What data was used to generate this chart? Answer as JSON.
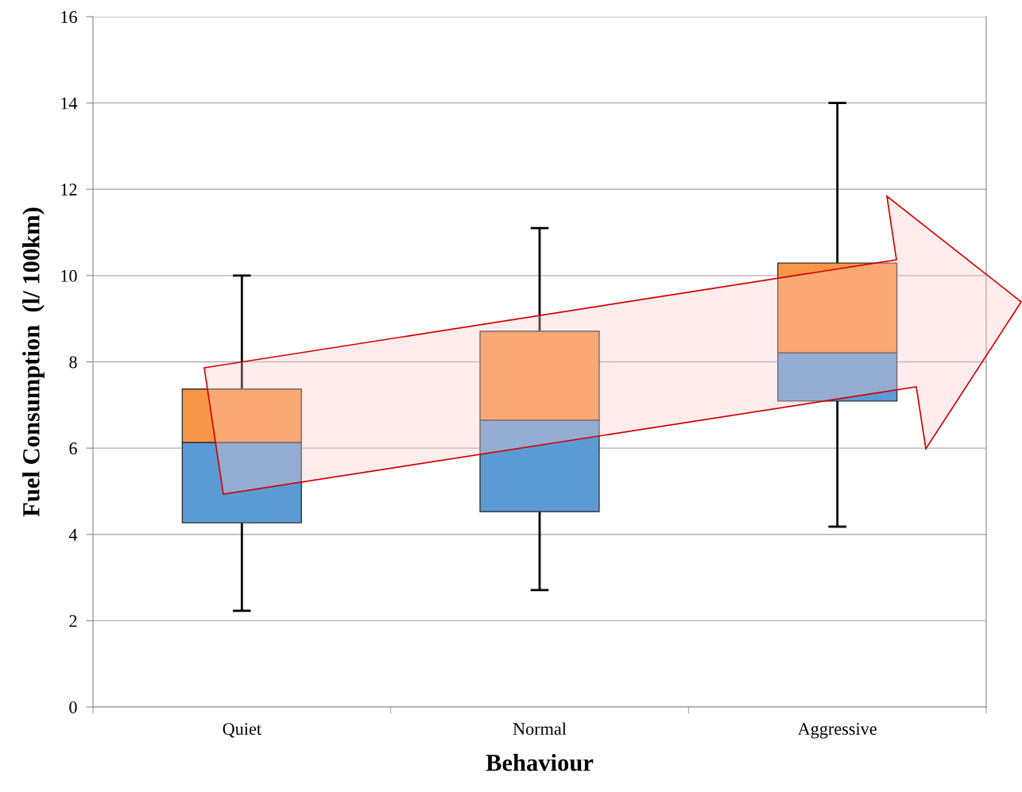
{
  "chart_data": {
    "type": "box",
    "xlabel": "Behaviour",
    "ylabel": "Fuel Consumption  (l/ 100km)",
    "categories": [
      "Quiet",
      "Normal",
      "Aggressive"
    ],
    "series": [
      {
        "color": "#5b9bd5",
        "boxes": [
          {
            "low": 2.23,
            "q1": 4.27,
            "median": 6.13,
            "q3": 7.37,
            "high": 10.0
          },
          {
            "low": 2.71,
            "q1": 4.53,
            "median": 6.65,
            "q3": 8.71,
            "high": 11.1
          },
          {
            "low": 4.18,
            "q1": 7.09,
            "median": 8.21,
            "q3": 10.29,
            "high": 14.0
          }
        ]
      }
    ],
    "colors": [
      "#f79646",
      "#f79646",
      "#f79646"
    ],
    "ylim": [
      0,
      16
    ],
    "yticks": [
      0,
      2,
      4,
      6,
      8,
      10,
      12,
      14,
      16
    ],
    "grid": "y",
    "legend": false
  }
}
